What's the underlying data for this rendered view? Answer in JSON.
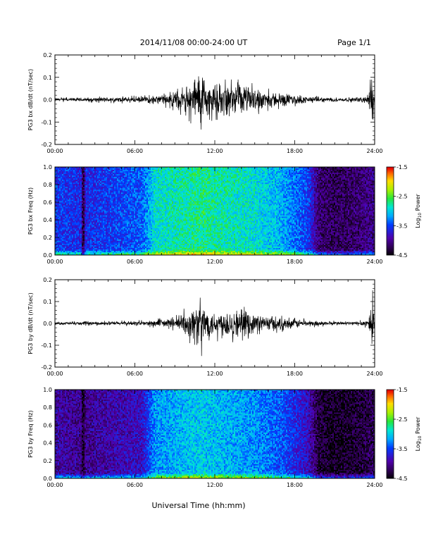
{
  "header": {
    "title": "2014/11/08   00:00-24:00 UT",
    "page": "Page 1/1"
  },
  "xlabel": "Universal Time (hh:mm)",
  "colorbar": {
    "label_main": "Log",
    "label_sub": "10",
    "label_rest": " Power",
    "ticks": [
      "-1.5",
      "-2.5",
      "-3.5",
      "-4.5"
    ],
    "range": [
      -4.5,
      -1.5
    ]
  },
  "chart_data": [
    {
      "type": "line",
      "ylabel": "PG3 bx dB/dt (nT/sec)",
      "xlim": [
        0,
        24
      ],
      "ylim": [
        -0.2,
        0.2
      ],
      "xticks": [
        "00:00",
        "06:00",
        "12:00",
        "18:00",
        "24:00"
      ],
      "yticks": [
        "0.2",
        "0.1",
        "0.0",
        "-0.1",
        "-0.2"
      ],
      "envelope": {
        "x_hours": [
          0,
          2,
          4,
          6,
          7,
          8,
          9,
          10,
          10.5,
          11,
          11.5,
          12,
          13,
          14,
          15,
          16,
          17,
          18,
          19,
          20,
          21,
          22,
          23,
          23.5,
          23.8,
          24
        ],
        "amplitude": [
          0.01,
          0.012,
          0.015,
          0.018,
          0.02,
          0.03,
          0.05,
          0.09,
          0.13,
          0.2,
          0.1,
          0.09,
          0.09,
          0.09,
          0.07,
          0.05,
          0.04,
          0.03,
          0.02,
          0.015,
          0.012,
          0.012,
          0.015,
          0.03,
          0.18,
          0.02
        ]
      }
    },
    {
      "type": "heatmap",
      "ylabel": "PG3 bx Freq (Hz)",
      "xlim": [
        0,
        24
      ],
      "ylim": [
        0,
        1
      ],
      "xticks": [
        "00:00",
        "06:00",
        "12:00",
        "18:00",
        "24:00"
      ],
      "yticks": [
        "1.0",
        "0.8",
        "0.6",
        "0.4",
        "0.2",
        "0.0"
      ],
      "power_profile": {
        "x_hours": [
          0,
          2,
          2.1,
          2.3,
          4,
          6.5,
          7.5,
          9,
          11,
          13,
          15,
          16,
          17,
          18,
          19,
          19.8,
          21,
          23,
          24
        ],
        "log10_power": [
          -3.5,
          -3.6,
          -4.5,
          -3.6,
          -3.5,
          -3.4,
          -2.9,
          -2.8,
          -2.7,
          -2.8,
          -2.9,
          -3.0,
          -3.1,
          -3.3,
          -3.5,
          -4.1,
          -4.2,
          -4.1,
          -4.0
        ]
      }
    },
    {
      "type": "line",
      "ylabel": "PG3 by dB/dt (nT/sec)",
      "xlim": [
        0,
        24
      ],
      "ylim": [
        -0.2,
        0.2
      ],
      "xticks": [
        "00:00",
        "06:00",
        "12:00",
        "18:00",
        "24:00"
      ],
      "yticks": [
        "0.2",
        "0.1",
        "0.0",
        "-0.1",
        "-0.2"
      ],
      "envelope": {
        "x_hours": [
          0,
          2,
          4,
          6,
          7,
          8,
          9,
          10,
          10.5,
          11,
          11.5,
          12,
          13,
          14,
          15,
          16,
          17,
          18,
          19,
          20,
          21,
          22,
          23,
          23.5,
          23.8,
          24
        ],
        "amplitude": [
          0.008,
          0.01,
          0.012,
          0.014,
          0.016,
          0.025,
          0.04,
          0.08,
          0.12,
          0.15,
          0.09,
          0.08,
          0.09,
          0.08,
          0.06,
          0.05,
          0.04,
          0.03,
          0.02,
          0.015,
          0.012,
          0.012,
          0.015,
          0.03,
          0.19,
          0.02
        ]
      }
    },
    {
      "type": "heatmap",
      "ylabel": "PG3 by Freq (Hz)",
      "xlim": [
        0,
        24
      ],
      "ylim": [
        0,
        1
      ],
      "xticks": [
        "00:00",
        "06:00",
        "12:00",
        "18:00",
        "24:00"
      ],
      "yticks": [
        "1.0",
        "0.8",
        "0.6",
        "0.4",
        "0.2",
        "0.0"
      ],
      "power_profile": {
        "x_hours": [
          0,
          2,
          2.1,
          2.3,
          4,
          6.5,
          7.5,
          9,
          11,
          13,
          15,
          16,
          17,
          18,
          19,
          19.8,
          21,
          23,
          24
        ],
        "log10_power": [
          -3.9,
          -4.0,
          -4.5,
          -4.0,
          -3.9,
          -3.8,
          -3.2,
          -3.1,
          -3.0,
          -3.1,
          -3.2,
          -3.3,
          -3.4,
          -3.6,
          -3.8,
          -4.3,
          -4.4,
          -4.3,
          -4.2
        ]
      }
    }
  ]
}
